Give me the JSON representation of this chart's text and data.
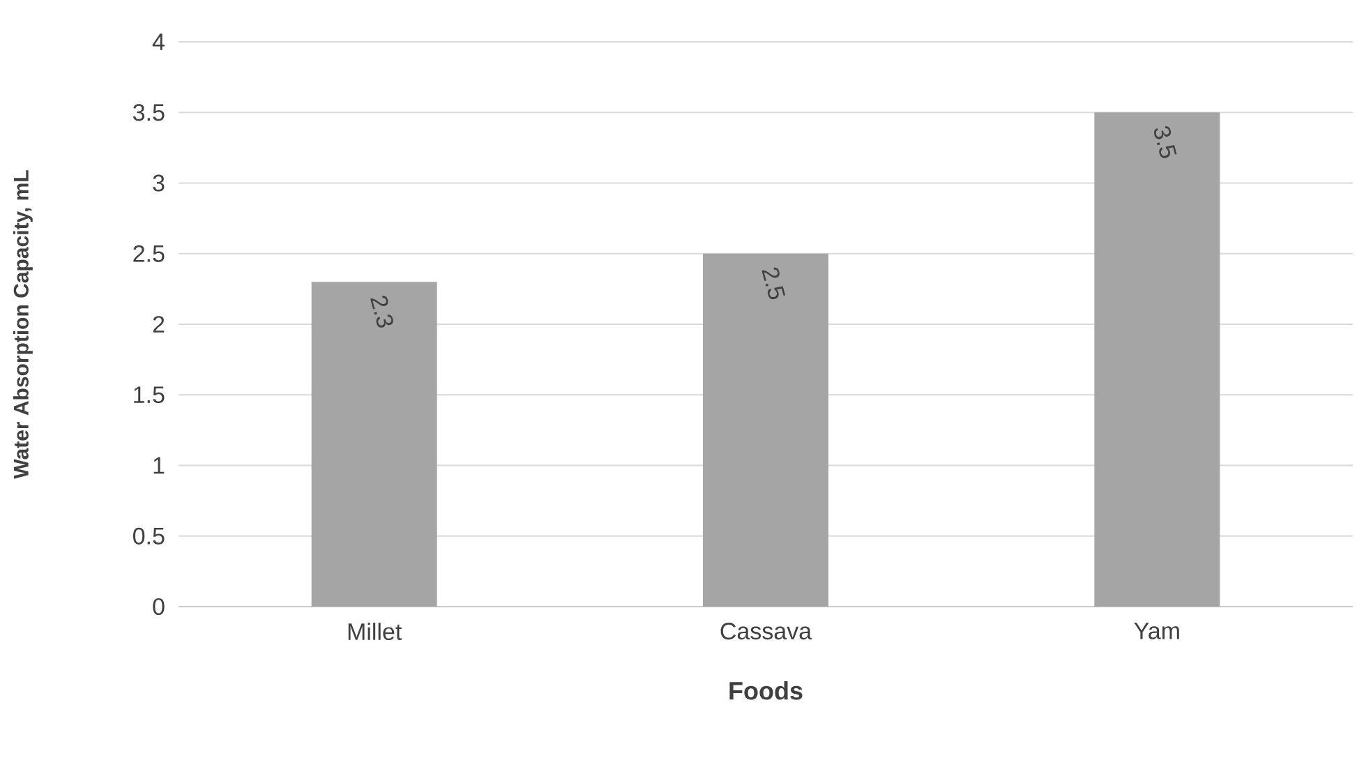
{
  "chart_data": {
    "type": "bar",
    "xlabel": "Foods",
    "ylabel": "Water Absorption Capacity, mL",
    "categories": [
      "Millet",
      "Cassava",
      "Yam"
    ],
    "values": [
      2.3,
      2.5,
      3.5
    ],
    "color": "#a5a5a5",
    "ylim": [
      0,
      4
    ],
    "yticks": [
      0,
      0.5,
      1,
      1.5,
      2,
      2.5,
      3,
      3.5,
      4
    ],
    "grid": "y",
    "data_labels": true
  }
}
